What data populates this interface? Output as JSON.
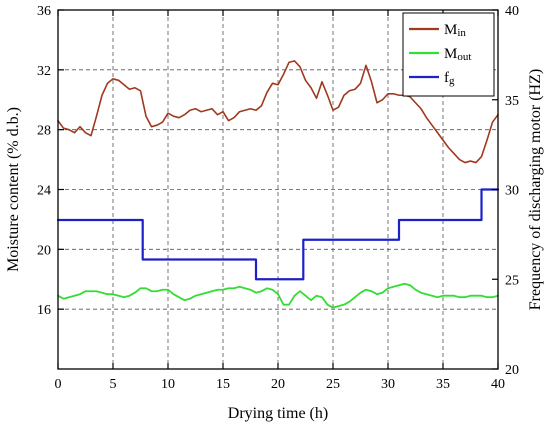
{
  "chart_data": {
    "type": "line",
    "title": "",
    "xlabel": "Drying time (h)",
    "ylabel_left": "Moisture content (% d.b.)",
    "ylabel_right": "Frequency of discharging motor (HZ)",
    "xlim": [
      0,
      40
    ],
    "ylim_left": [
      12,
      36
    ],
    "ylim_right": [
      20,
      40
    ],
    "x_ticks": [
      0,
      5,
      10,
      15,
      20,
      25,
      30,
      35,
      40
    ],
    "y_ticks_left": [
      16,
      20,
      24,
      28,
      32,
      36
    ],
    "y_ticks_right": [
      20,
      25,
      30,
      35,
      40
    ],
    "grid": true,
    "grid_style": "dashed",
    "legend_position": "top-right",
    "colors": {
      "M_in": "#a0391f",
      "M_out": "#33dd33",
      "f_g": "#1d22c8"
    },
    "legend": [
      {
        "key": "M_in",
        "main": "M",
        "sub": "in"
      },
      {
        "key": "M_out",
        "main": "M",
        "sub": "out"
      },
      {
        "key": "f_g",
        "main": "f",
        "sub": "g"
      }
    ],
    "series": [
      {
        "key": "M_in",
        "name": "Min",
        "axis": "left",
        "x": [
          0,
          0.5,
          1,
          1.5,
          2,
          2.5,
          3,
          3.5,
          4,
          4.5,
          5,
          5.5,
          6,
          6.5,
          7,
          7.5,
          8,
          8.5,
          9,
          9.5,
          10,
          10.5,
          11,
          11.5,
          12,
          12.5,
          13,
          13.5,
          14,
          14.5,
          15,
          15.5,
          16,
          16.5,
          17,
          17.5,
          18,
          18.5,
          19,
          19.5,
          20,
          20.5,
          21,
          21.5,
          22,
          22.5,
          23,
          23.5,
          24,
          24.5,
          25,
          25.5,
          26,
          26.5,
          27,
          27.5,
          28,
          28.5,
          29,
          29.5,
          30,
          30.5,
          31,
          31.5,
          32,
          32.5,
          33,
          33.5,
          34,
          34.5,
          35,
          35.5,
          36,
          36.5,
          37,
          37.5,
          38,
          38.5,
          39,
          39.5,
          40
        ],
        "y": [
          28.6,
          28.1,
          28.0,
          27.8,
          28.2,
          27.8,
          27.6,
          28.9,
          30.3,
          31.1,
          31.4,
          31.3,
          31.0,
          30.7,
          30.8,
          30.6,
          28.9,
          28.2,
          28.3,
          28.5,
          29.1,
          28.9,
          28.8,
          29.0,
          29.3,
          29.4,
          29.2,
          29.3,
          29.4,
          29.0,
          29.2,
          28.6,
          28.8,
          29.2,
          29.3,
          29.4,
          29.3,
          29.6,
          30.5,
          31.1,
          31.0,
          31.7,
          32.5,
          32.6,
          32.2,
          31.3,
          30.8,
          30.1,
          31.2,
          30.3,
          29.3,
          29.5,
          30.3,
          30.6,
          30.7,
          31.1,
          32.3,
          31.2,
          29.8,
          30.0,
          30.4,
          30.4,
          30.3,
          30.3,
          30.2,
          29.8,
          29.4,
          28.8,
          28.3,
          27.8,
          27.3,
          26.8,
          26.4,
          26.0,
          25.8,
          25.9,
          25.8,
          26.2,
          27.3,
          28.5,
          29.0
        ]
      },
      {
        "key": "M_out",
        "name": "Mout",
        "axis": "left",
        "x": [
          0,
          0.5,
          1,
          1.5,
          2,
          2.5,
          3,
          3.5,
          4,
          4.5,
          5,
          5.5,
          6,
          6.5,
          7,
          7.5,
          8,
          8.5,
          9,
          9.5,
          10,
          10.5,
          11,
          11.5,
          12,
          12.5,
          13,
          13.5,
          14,
          14.5,
          15,
          15.5,
          16,
          16.5,
          17,
          17.5,
          18,
          18.5,
          19,
          19.5,
          20,
          20.5,
          21,
          21.5,
          22,
          22.5,
          23,
          23.5,
          24,
          24.5,
          25,
          25.5,
          26,
          26.5,
          27,
          27.5,
          28,
          28.5,
          29,
          29.5,
          30,
          30.5,
          31,
          31.5,
          32,
          32.5,
          33,
          33.5,
          34,
          34.5,
          35,
          35.5,
          36,
          36.5,
          37,
          37.5,
          38,
          38.5,
          39,
          39.5,
          40
        ],
        "y": [
          16.9,
          16.7,
          16.8,
          16.9,
          17.0,
          17.2,
          17.2,
          17.2,
          17.1,
          17.0,
          17.0,
          16.9,
          16.8,
          16.9,
          17.1,
          17.4,
          17.4,
          17.2,
          17.2,
          17.3,
          17.3,
          17.0,
          16.8,
          16.6,
          16.7,
          16.9,
          17.0,
          17.1,
          17.2,
          17.3,
          17.3,
          17.4,
          17.4,
          17.5,
          17.4,
          17.3,
          17.1,
          17.2,
          17.4,
          17.3,
          17.0,
          16.3,
          16.3,
          16.9,
          17.2,
          16.9,
          16.6,
          16.9,
          16.8,
          16.3,
          16.1,
          16.2,
          16.3,
          16.5,
          16.8,
          17.1,
          17.3,
          17.2,
          17.0,
          17.1,
          17.4,
          17.5,
          17.6,
          17.7,
          17.6,
          17.3,
          17.1,
          17.0,
          16.9,
          16.8,
          16.9,
          16.9,
          16.9,
          16.8,
          16.8,
          16.9,
          16.9,
          16.9,
          16.8,
          16.8,
          16.9
        ]
      },
      {
        "key": "f_g",
        "name": "fg",
        "axis": "right",
        "x": [
          0,
          7.7,
          7.7,
          18.0,
          18.0,
          22.3,
          22.3,
          31.0,
          31.0,
          38.5,
          38.5,
          40
        ],
        "y": [
          28.3,
          28.3,
          26.1,
          26.1,
          25.0,
          25.0,
          27.2,
          27.2,
          28.3,
          28.3,
          30.0,
          30.0
        ]
      }
    ]
  }
}
